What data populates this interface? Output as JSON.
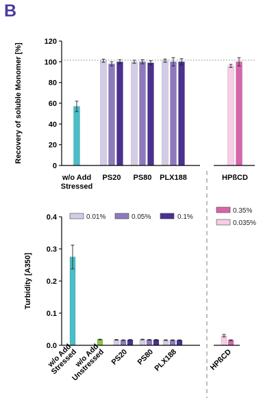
{
  "panel_label": "B",
  "colors": {
    "stressed": "#49bec8",
    "unstressed": "#8cc63f",
    "pct_0_01": "#d3cce6",
    "pct_0_05": "#8e79bf",
    "pct_0_1": "#4b3190",
    "hpbcd_0_035": "#f6cde4",
    "hpbcd_0_35": "#d765ab"
  },
  "chart_data": [
    {
      "type": "bar",
      "ylabel": "Recovery of soluble Monomer [%]",
      "ylim": [
        0,
        120
      ],
      "yticks": [
        "0",
        "20",
        "40",
        "60",
        "80",
        "100",
        "120"
      ],
      "reference_line": 100,
      "groups": [
        {
          "label": "w/o Add\nStressed",
          "bars": [
            {
              "series": "stressed",
              "value": 57,
              "error": 5
            }
          ]
        },
        {
          "label": "PS20",
          "bars": [
            {
              "series": "0.01%",
              "value": 101,
              "error": 1.5
            },
            {
              "series": "0.05%",
              "value": 98,
              "error": 2
            },
            {
              "series": "0.1%",
              "value": 100,
              "error": 2
            }
          ]
        },
        {
          "label": "PS80",
          "bars": [
            {
              "series": "0.01%",
              "value": 100,
              "error": 1.5
            },
            {
              "series": "0.05%",
              "value": 100,
              "error": 2
            },
            {
              "series": "0.1%",
              "value": 99,
              "error": 2
            }
          ]
        },
        {
          "label": "PLX188",
          "bars": [
            {
              "series": "0.01%",
              "value": 101,
              "error": 1.5
            },
            {
              "series": "0.05%",
              "value": 100,
              "error": 4
            },
            {
              "series": "0.1%",
              "value": 100,
              "error": 3
            }
          ]
        },
        {
          "label": "HPßCD",
          "bars": [
            {
              "series": "0.035%",
              "value": 96,
              "error": 1.5
            },
            {
              "series": "0.35%",
              "value": 100,
              "error": 4
            }
          ]
        }
      ]
    },
    {
      "type": "bar",
      "ylabel": "Turbidity [A350]",
      "ylim": [
        0,
        0.4
      ],
      "yticks": [
        "0.0",
        "0.1",
        "0.2",
        "0.3",
        "0.4"
      ],
      "legend": [
        {
          "label": "0.01%",
          "color_key": "pct_0_01"
        },
        {
          "label": "0.05%",
          "color_key": "pct_0_05"
        },
        {
          "label": "0.1%",
          "color_key": "pct_0_1"
        }
      ],
      "legend_hpbcd": [
        {
          "label": "0.35%",
          "color_key": "hpbcd_0_35"
        },
        {
          "label": "0.035%",
          "color_key": "hpbcd_0_035"
        }
      ],
      "groups": [
        {
          "label": "w/o Add\nStressed",
          "bars": [
            {
              "series": "stressed",
              "value": 0.275,
              "error": 0.037
            }
          ]
        },
        {
          "label": "w/o Add\nUnstressed",
          "bars": [
            {
              "series": "unstressed",
              "value": 0.018,
              "error": 0.001
            }
          ]
        },
        {
          "label": "PS20",
          "bars": [
            {
              "series": "0.01%",
              "value": 0.017,
              "error": 0.001
            },
            {
              "series": "0.05%",
              "value": 0.016,
              "error": 0.001
            },
            {
              "series": "0.1%",
              "value": 0.017,
              "error": 0.001
            }
          ]
        },
        {
          "label": "PS80",
          "bars": [
            {
              "series": "0.01%",
              "value": 0.018,
              "error": 0.001
            },
            {
              "series": "0.05%",
              "value": 0.017,
              "error": 0.001
            },
            {
              "series": "0.1%",
              "value": 0.017,
              "error": 0.001
            }
          ]
        },
        {
          "label": "PLX188",
          "bars": [
            {
              "series": "0.01%",
              "value": 0.016,
              "error": 0.001
            },
            {
              "series": "0.05%",
              "value": 0.016,
              "error": 0.001
            },
            {
              "series": "0.1%",
              "value": 0.016,
              "error": 0.001
            }
          ]
        },
        {
          "label": "HPßCD",
          "bars": [
            {
              "series": "0.035%",
              "value": 0.03,
              "error": 0.004
            },
            {
              "series": "0.35%",
              "value": 0.016,
              "error": 0.001
            }
          ]
        }
      ]
    }
  ]
}
